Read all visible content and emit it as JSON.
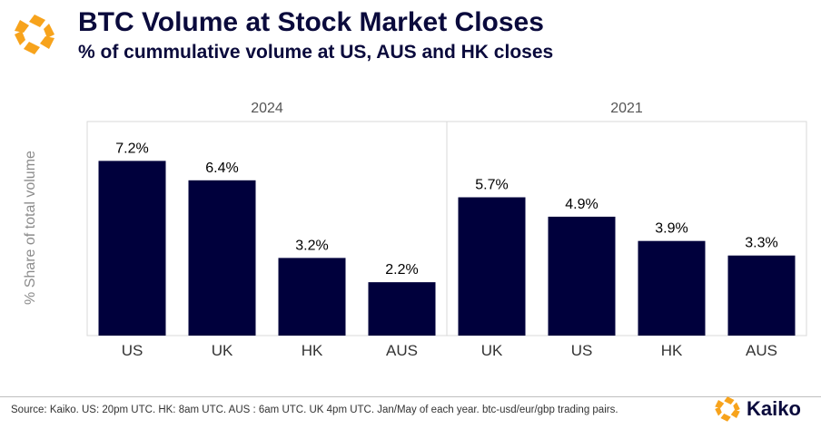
{
  "header": {
    "title": "BTC Volume at Stock Market Closes",
    "subtitle": "% of cummulative volume at US, AUS and HK closes"
  },
  "footer": {
    "source": "Source: Kaiko. US: 20pm UTC. HK: 8am UTC. AUS : 6am UTC. UK 4pm UTC. Jan/May of each year. btc-usd/eur/gbp trading pairs.",
    "brand": "Kaiko"
  },
  "colors": {
    "bar": "#00003c",
    "accent": "#f7a31c",
    "panel_border": "#d9d9d9"
  },
  "icons": {
    "logo": "kaiko-logo-icon"
  },
  "chart_data": {
    "type": "bar",
    "ylabel": "% Share of total volume",
    "ylim": [
      0,
      8
    ],
    "grid": false,
    "legend": "none",
    "panels": [
      {
        "title": "2024",
        "categories": [
          "US",
          "UK",
          "HK",
          "AUS"
        ],
        "values": [
          7.2,
          6.4,
          3.2,
          2.2
        ],
        "labels": [
          "7.2%",
          "6.4%",
          "3.2%",
          "2.2%"
        ]
      },
      {
        "title": "2021",
        "categories": [
          "UK",
          "US",
          "HK",
          "AUS"
        ],
        "values": [
          5.7,
          4.9,
          3.9,
          3.3
        ],
        "labels": [
          "5.7%",
          "4.9%",
          "3.9%",
          "3.3%"
        ]
      }
    ]
  }
}
